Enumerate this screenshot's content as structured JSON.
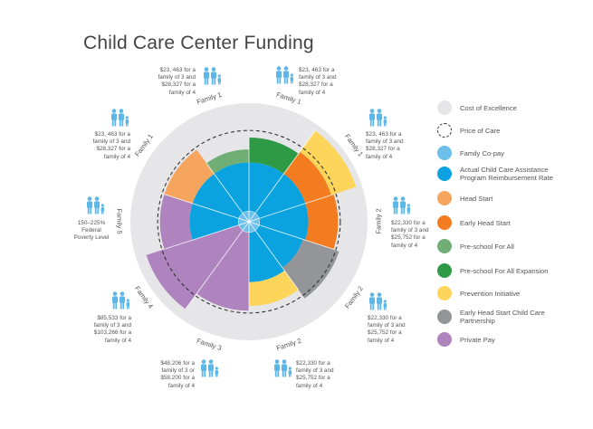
{
  "title": "Child Care Center Funding",
  "colors": {
    "cost_of_excellence": "#e6e6e8",
    "price_of_care": "#333333",
    "family_copay": "#6cc0ea",
    "ccap": "#0aa3e0",
    "head_start": "#f6a55f",
    "early_head_start": "#f47c20",
    "preschool_for_all": "#6fae74",
    "preschool_expansion": "#2f9a45",
    "prevention": "#fdd55a",
    "ehs_partnership": "#939598",
    "private_pay": "#ae83be",
    "icon": "#5cb6e6"
  },
  "scale_note": "values relative to Cost of Excellence = 100",
  "chart_data": {
    "type": "radial-stacked",
    "cost_of_excellence": 100,
    "price_of_care": 77,
    "family_copay": 9,
    "segments": [
      {
        "family": "Family 1",
        "layers": [
          {
            "key": "ccap",
            "to": 50
          },
          {
            "key": "preschool_expansion",
            "to": 71
          }
        ]
      },
      {
        "family": "Family 1",
        "layers": [
          {
            "key": "ccap",
            "to": 50
          },
          {
            "key": "early_head_start",
            "to": 73
          },
          {
            "key": "prevention",
            "to": 95
          }
        ]
      },
      {
        "family": "Family 2",
        "layers": [
          {
            "key": "ccap",
            "to": 50
          },
          {
            "key": "early_head_start",
            "to": 75
          }
        ]
      },
      {
        "family": "Family 2",
        "layers": [
          {
            "key": "ccap",
            "to": 48
          },
          {
            "key": "ehs_partnership",
            "to": 80
          }
        ]
      },
      {
        "family": "Family 2",
        "layers": [
          {
            "key": "ccap",
            "to": 51
          },
          {
            "key": "prevention",
            "to": 71
          }
        ]
      },
      {
        "family": "Family 3",
        "layers": [
          {
            "key": "private_pay",
            "to": 75
          }
        ]
      },
      {
        "family": "Family 4",
        "layers": [
          {
            "key": "private_pay",
            "to": 91
          }
        ]
      },
      {
        "family": "Family 5",
        "layers": [
          {
            "key": "ccap",
            "to": 50
          },
          {
            "key": "private_pay",
            "to": 75
          }
        ]
      },
      {
        "family": "Family 1",
        "layers": [
          {
            "key": "ccap",
            "to": 50
          },
          {
            "key": "head_start",
            "to": 75
          }
        ]
      },
      {
        "family": "Family 1",
        "layers": [
          {
            "key": "ccap",
            "to": 50
          },
          {
            "key": "preschool_for_all",
            "to": 61
          }
        ]
      }
    ]
  },
  "notes": [
    {
      "text": "$23, 463 for a family of 3 and $28,327 for a family of 4"
    },
    {
      "text": "$23, 463 for a family of 3 and $28,327 for a family of 4"
    },
    {
      "text": "$22,330 for a family of 3 and $25,752 for a family of 4"
    },
    {
      "text": "$22,330 for a family of 3 and $25,752 for a family of 4"
    },
    {
      "text": "$22,330 for a family of 3 and $25,752 for a family of 4"
    },
    {
      "text": "$48,206 for a family of 3 or $58,200 for a family of 4"
    },
    {
      "text": "$85,533 for a family of 3 and $103,266 for a family of 4"
    },
    {
      "text": "150–225% Federal Poverty Level"
    },
    {
      "text": "$23, 463 for a family of 3 and $28,327 for a family of 4"
    },
    {
      "text": "$23, 463 for a family of 3 and $28,327 for a family of 4"
    }
  ],
  "legend": [
    {
      "key": "cost_of_excellence",
      "label": "Cost of Excellence"
    },
    {
      "key": "price_of_care",
      "label": "Price of Care"
    },
    {
      "key": "family_copay",
      "label": "Family Co-pay"
    },
    {
      "key": "ccap",
      "label": "Actual Child Care Assistance Program Reimbursement Rate"
    },
    {
      "key": "head_start",
      "label": "Head Start"
    },
    {
      "key": "early_head_start",
      "label": "Early Head Start"
    },
    {
      "key": "preschool_for_all",
      "label": "Pre-school For All"
    },
    {
      "key": "preschool_expansion",
      "label": "Pre-school For All Expansion"
    },
    {
      "key": "prevention",
      "label": "Prevention Initiative"
    },
    {
      "key": "ehs_partnership",
      "label": "Early Head Start Child Care Partnership"
    },
    {
      "key": "private_pay",
      "label": "Private Pay"
    }
  ]
}
